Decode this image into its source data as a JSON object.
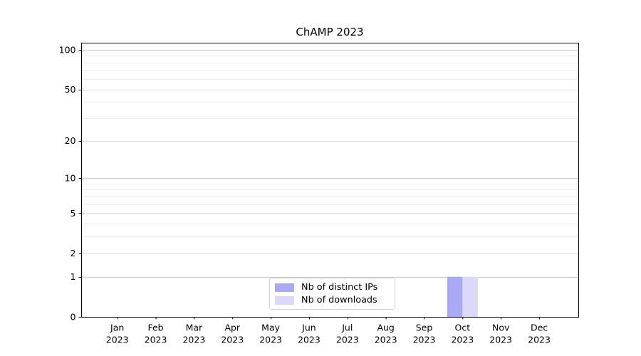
{
  "chart_data": {
    "type": "bar",
    "title": "ChAMP 2023",
    "xlabel": "",
    "ylabel": "",
    "categories": [
      {
        "line1": "Jan",
        "line2": "2023"
      },
      {
        "line1": "Feb",
        "line2": "2023"
      },
      {
        "line1": "Mar",
        "line2": "2023"
      },
      {
        "line1": "Apr",
        "line2": "2023"
      },
      {
        "line1": "May",
        "line2": "2023"
      },
      {
        "line1": "Jun",
        "line2": "2023"
      },
      {
        "line1": "Jul",
        "line2": "2023"
      },
      {
        "line1": "Aug",
        "line2": "2023"
      },
      {
        "line1": "Sep",
        "line2": "2023"
      },
      {
        "line1": "Oct",
        "line2": "2023"
      },
      {
        "line1": "Nov",
        "line2": "2023"
      },
      {
        "line1": "Dec",
        "line2": "2023"
      }
    ],
    "series": [
      {
        "name": "Nb of distinct IPs",
        "color": "#a9a9f4",
        "values": [
          0,
          0,
          0,
          0,
          0,
          0,
          0,
          0,
          0,
          1,
          0,
          0
        ]
      },
      {
        "name": "Nb of downloads",
        "color": "#dadaf8",
        "values": [
          0,
          0,
          0,
          0,
          0,
          0,
          0,
          0,
          0,
          1,
          0,
          0
        ]
      }
    ],
    "yaxis": {
      "scale": "log1p",
      "labeled_ticks": [
        0,
        1,
        2,
        5,
        10,
        20,
        50,
        100
      ],
      "major_ticks": [
        1,
        10,
        100
      ],
      "minor_ticks": [
        3,
        4,
        6,
        7,
        8,
        9,
        30,
        40,
        60,
        70,
        80,
        90
      ],
      "range": [
        0,
        113
      ]
    },
    "legend": {
      "location": "lower center",
      "border_color": "#d2d2d2"
    },
    "grid": {
      "horizontal": true,
      "vertical": false
    },
    "colors": {
      "background": "#ffffff",
      "spine": "#000000",
      "text": "#000000",
      "grid_major": "#c8c8c8",
      "grid_labeled_minor": "#dedede",
      "grid_minor": "#ececec"
    }
  }
}
